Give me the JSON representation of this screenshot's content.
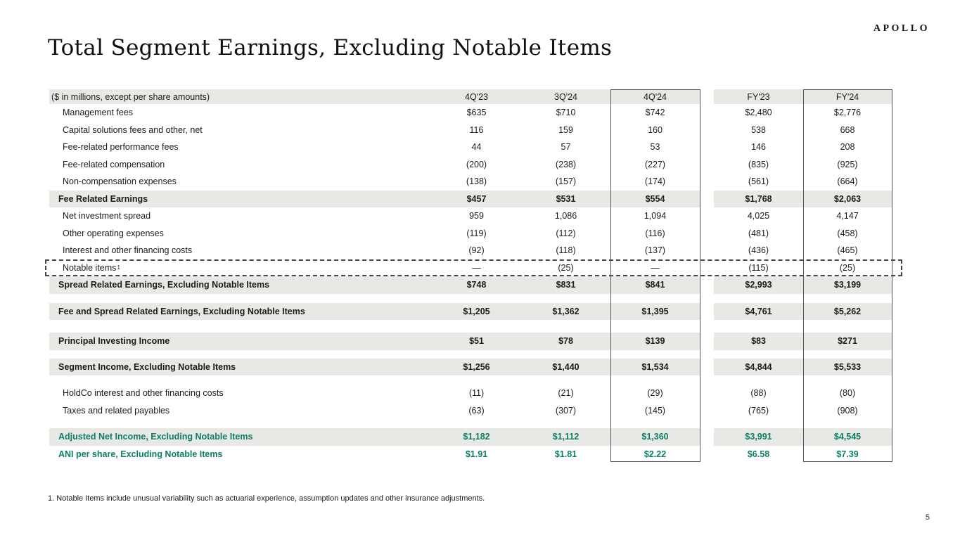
{
  "brand": {
    "logo_text": "APOLLO"
  },
  "page": {
    "title": "Total Segment Earnings, Excluding Notable Items",
    "footnote": "1. Notable Items include unusual variability such as actuarial experience, assumption updates and other insurance adjustments.",
    "number": "5"
  },
  "colors": {
    "accent_green": "#0D7E65",
    "band_gray": "#E8E8E4",
    "box_border": "#56565A"
  },
  "table": {
    "unit_label": "($ in millions, except per share amounts)",
    "columns": [
      "4Q'23",
      "3Q'24",
      "4Q'24",
      "FY'23",
      "FY'24"
    ],
    "highlighted_columns": [
      "4Q'24",
      "FY'24"
    ],
    "rows": [
      {
        "label": "Management fees",
        "style": "item",
        "values": [
          "$635",
          "$710",
          "$742",
          "$2,480",
          "$2,776"
        ]
      },
      {
        "label": "Capital solutions fees and other, net",
        "style": "item",
        "values": [
          "116",
          "159",
          "160",
          "538",
          "668"
        ]
      },
      {
        "label": "Fee-related performance fees",
        "style": "item",
        "values": [
          "44",
          "57",
          "53",
          "146",
          "208"
        ]
      },
      {
        "label": "Fee-related compensation",
        "style": "item",
        "values": [
          "(200)",
          "(238)",
          "(227)",
          "(835)",
          "(925)"
        ]
      },
      {
        "label": "Non-compensation expenses",
        "style": "item",
        "values": [
          "(138)",
          "(157)",
          "(174)",
          "(561)",
          "(664)"
        ]
      },
      {
        "label": "Fee Related Earnings",
        "style": "total",
        "values": [
          "$457",
          "$531",
          "$554",
          "$1,768",
          "$2,063"
        ]
      },
      {
        "label": "Net investment spread",
        "style": "item",
        "values": [
          "959",
          "1,086",
          "1,094",
          "4,025",
          "4,147"
        ]
      },
      {
        "label": "Other operating expenses",
        "style": "item",
        "values": [
          "(119)",
          "(112)",
          "(116)",
          "(481)",
          "(458)"
        ]
      },
      {
        "label": "Interest and other financing costs",
        "style": "item",
        "values": [
          "(92)",
          "(118)",
          "(137)",
          "(436)",
          "(465)"
        ]
      },
      {
        "label": "Notable items",
        "sup": "1",
        "style": "item",
        "dashed": true,
        "values": [
          "—",
          "(25)",
          "—",
          "(115)",
          "(25)"
        ]
      },
      {
        "label": "Spread Related Earnings, Excluding Notable Items",
        "style": "total",
        "values": [
          "$748",
          "$831",
          "$841",
          "$2,993",
          "$3,199"
        ]
      },
      {
        "label": "Fee and Spread Related Earnings, Excluding Notable Items",
        "style": "total",
        "gap_before": 13,
        "values": [
          "$1,205",
          "$1,362",
          "$1,395",
          "$4,761",
          "$5,262"
        ]
      },
      {
        "label": "Principal Investing Income",
        "style": "total",
        "gap_before": 18,
        "values": [
          "$51",
          "$78",
          "$139",
          "$83",
          "$271"
        ]
      },
      {
        "label": "Segment Income, Excluding Notable Items",
        "style": "total",
        "gap_before": 12,
        "values": [
          "$1,256",
          "$1,440",
          "$1,534",
          "$4,844",
          "$5,533"
        ]
      },
      {
        "label": "HoldCo interest and other financing costs",
        "style": "item",
        "gap_before": 13,
        "values": [
          "(11)",
          "(21)",
          "(29)",
          "(88)",
          "(80)"
        ]
      },
      {
        "label": "Taxes and related payables",
        "style": "item",
        "values": [
          "(63)",
          "(307)",
          "(145)",
          "(765)",
          "(908)"
        ]
      },
      {
        "label": "Adjusted Net Income, Excluding Notable Items",
        "style": "green-total",
        "gap_before": 13,
        "values": [
          "$1,182",
          "$1,112",
          "$1,360",
          "$3,991",
          "$4,545"
        ]
      },
      {
        "label": "ANI per share, Excluding Notable Items",
        "style": "green-row",
        "values": [
          "$1.91",
          "$1.81",
          "$2.22",
          "$6.58",
          "$7.39"
        ]
      }
    ]
  }
}
